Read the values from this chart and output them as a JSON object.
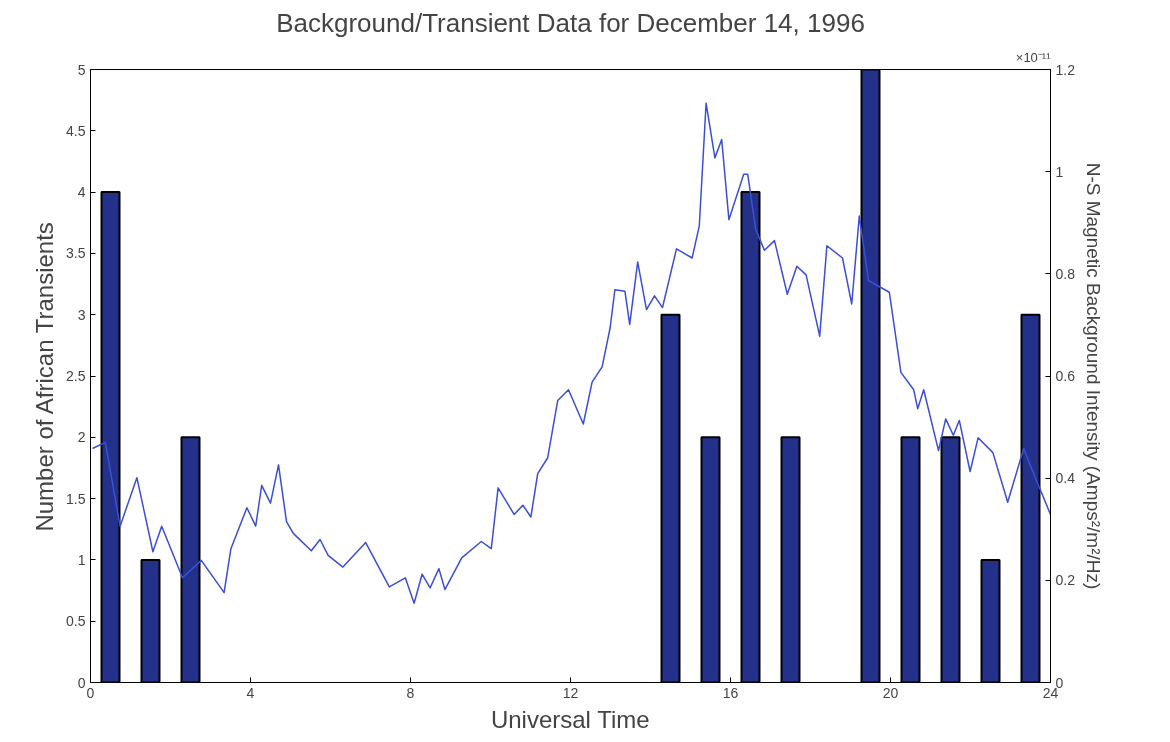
{
  "chart_data": {
    "type": "bar",
    "title": "Background/Transient Data for December 14, 1996",
    "xlabel": "Universal Time",
    "ylabel": "Number of African Transients",
    "y2label": "N-S Magnetic Background Intensity (Amps²/m²/Hz)",
    "annotations": [
      "×10⁻¹¹"
    ],
    "xlim": [
      0,
      24
    ],
    "xticks": [
      0,
      4,
      8,
      12,
      16,
      20,
      24
    ],
    "ylim": [
      0,
      5
    ],
    "yticks": [
      0,
      0.5,
      1,
      1.5,
      2,
      2.5,
      3,
      3.5,
      4,
      4.5,
      5
    ],
    "y2lim": [
      0,
      1.2
    ],
    "y2ticks": [
      0,
      0.2,
      0.4,
      0.6,
      0.8,
      1,
      1.2
    ],
    "grid": false,
    "series": [
      {
        "color": "#23318a",
        "x": [
          0.5,
          1.5,
          2.5,
          14.5,
          15.5,
          16.5,
          17.5,
          19.5,
          20.5,
          21.5,
          22.5,
          23.5
        ],
        "values": [
          4,
          1,
          2,
          3,
          2,
          4,
          2,
          5,
          2,
          2,
          1,
          3
        ]
      },
      {
        "type": "line",
        "axis": "y2",
        "color": "#3a4fd6",
        "x": [
          0.05,
          0.37,
          0.74,
          1.16,
          1.56,
          1.78,
          2.3,
          2.77,
          3.34,
          3.51,
          3.91,
          4.13,
          4.28,
          4.5,
          4.7,
          4.9,
          5.07,
          5.52,
          5.74,
          5.94,
          6.31,
          6.88,
          7.47,
          7.87,
          8.09,
          8.29,
          8.49,
          8.71,
          8.86,
          9.28,
          9.77,
          10.02,
          10.19,
          10.59,
          10.81,
          11.01,
          11.18,
          11.43,
          11.68,
          11.95,
          12.32,
          12.54,
          12.79,
          12.99,
          13.11,
          13.36,
          13.48,
          13.68,
          13.9,
          14.1,
          14.3,
          14.65,
          15.04,
          15.22,
          15.39,
          15.61,
          15.78,
          15.96,
          16.33,
          16.43,
          16.63,
          16.85,
          17.1,
          17.42,
          17.66,
          17.89,
          18.23,
          18.41,
          18.8,
          19.03,
          19.22,
          19.45,
          19.97,
          20.26,
          20.58,
          20.68,
          20.83,
          21.2,
          21.38,
          21.57,
          21.72,
          21.99,
          22.19,
          22.56,
          22.93,
          23.33,
          23.5,
          24.0
        ],
        "values": [
          0.458,
          0.47,
          0.306,
          0.401,
          0.256,
          0.306,
          0.205,
          0.239,
          0.176,
          0.262,
          0.342,
          0.306,
          0.386,
          0.351,
          0.426,
          0.315,
          0.292,
          0.258,
          0.28,
          0.249,
          0.226,
          0.274,
          0.187,
          0.205,
          0.155,
          0.212,
          0.185,
          0.223,
          0.182,
          0.244,
          0.276,
          0.262,
          0.381,
          0.329,
          0.347,
          0.324,
          0.409,
          0.44,
          0.552,
          0.573,
          0.506,
          0.588,
          0.618,
          0.694,
          0.769,
          0.766,
          0.701,
          0.823,
          0.73,
          0.757,
          0.734,
          0.849,
          0.831,
          0.894,
          1.134,
          1.027,
          1.063,
          0.906,
          0.995,
          0.995,
          0.887,
          0.846,
          0.865,
          0.76,
          0.815,
          0.798,
          0.678,
          0.855,
          0.831,
          0.741,
          0.913,
          0.787,
          0.764,
          0.607,
          0.573,
          0.536,
          0.573,
          0.454,
          0.516,
          0.484,
          0.513,
          0.413,
          0.479,
          0.45,
          0.353,
          0.458,
          0.424,
          0.329
        ]
      }
    ]
  }
}
